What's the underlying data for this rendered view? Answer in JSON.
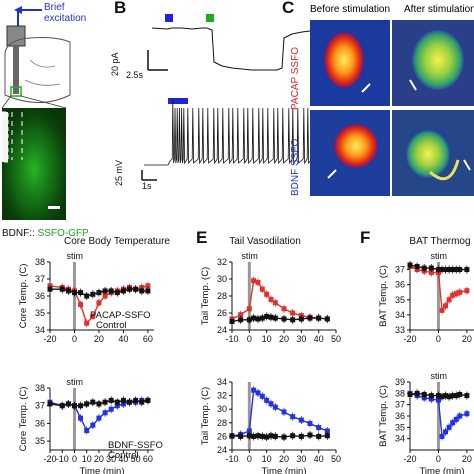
{
  "panel_a": {
    "excitation_label": "Brief\nexcitation",
    "bottom_label_prefix": "BDNF::",
    "bottom_label_suffix": "SSFO-GFP",
    "colors": {
      "blue": "#2233cc",
      "green": "#1fa31f"
    }
  },
  "panel_b": {
    "letter": "B",
    "scale_top_y": "20 pA",
    "scale_top_x": "2.5s",
    "scale_bot_y": "25 mV",
    "scale_bot_x": "1s",
    "colors": {
      "marker_blue": "#2222dd",
      "marker_green": "#22aa22"
    }
  },
  "panel_c": {
    "letter": "C",
    "col1": "Before stimulation",
    "col2": "After stimulation",
    "row1": "PACAP SSFO",
    "row2": "BDNF SSFO",
    "colors": {
      "row1": "#e02020",
      "row2": "#2233cc"
    }
  },
  "panel_e": {
    "letter": "E"
  },
  "panel_f": {
    "letter": "F"
  },
  "chart_data": [
    {
      "id": "core-top",
      "type": "line",
      "title": "Core Body Temperature",
      "ylabel": "Core Temp. (C)",
      "xlabel": "",
      "ylim": [
        34,
        38
      ],
      "yticks": [
        34,
        35,
        36,
        37,
        38
      ],
      "xlim": [
        -20,
        65
      ],
      "xticks": [
        -20,
        0,
        20,
        40,
        60
      ],
      "stim": "stim",
      "stim_x": 0,
      "series": [
        {
          "name": "PACAP-SSFO",
          "color": "#e03030",
          "x": [
            -20,
            -10,
            -5,
            0,
            5,
            10,
            15,
            20,
            25,
            30,
            35,
            40,
            45,
            50,
            55,
            60
          ],
          "y": [
            36.6,
            36.5,
            36.4,
            36.3,
            35.5,
            34.4,
            34.8,
            35.6,
            36.0,
            36.2,
            36.3,
            36.4,
            36.5,
            36.4,
            36.5,
            36.6
          ]
        },
        {
          "name": "Control",
          "color": "#111111",
          "x": [
            -20,
            -10,
            -5,
            0,
            5,
            10,
            15,
            20,
            25,
            30,
            35,
            40,
            45,
            50,
            55,
            60
          ],
          "y": [
            36.4,
            36.4,
            36.3,
            36.2,
            36.2,
            36.0,
            36.1,
            36.2,
            36.3,
            36.3,
            36.2,
            36.3,
            36.4,
            36.4,
            36.3,
            36.3
          ]
        }
      ],
      "xticklabels": [
        "-20",
        "0",
        "20",
        "40",
        "60"
      ]
    },
    {
      "id": "core-bot",
      "type": "line",
      "title": "",
      "ylabel": "Core Temp. (C)",
      "xlabel": "Time (min)",
      "ylim": [
        34.5,
        38
      ],
      "yticks": [
        35,
        36,
        37,
        38
      ],
      "xlim": [
        -20,
        65
      ],
      "xticks": [
        -20,
        -10,
        0,
        10,
        20,
        30,
        40,
        50,
        60
      ],
      "stim": "stim",
      "stim_x": 0,
      "series": [
        {
          "name": "BDNF-SSFO",
          "color": "#2233dd",
          "x": [
            -20,
            -10,
            -5,
            0,
            5,
            10,
            15,
            20,
            25,
            30,
            35,
            40,
            45,
            50,
            55,
            60
          ],
          "y": [
            37.2,
            37.0,
            37.1,
            37.0,
            36.3,
            35.6,
            35.9,
            36.3,
            36.6,
            36.8,
            37.0,
            37.1,
            37.2,
            37.2,
            37.3,
            37.3
          ]
        },
        {
          "name": "Control",
          "color": "#111111",
          "x": [
            -20,
            -10,
            -5,
            0,
            5,
            10,
            15,
            20,
            25,
            30,
            35,
            40,
            45,
            50,
            55,
            60
          ],
          "y": [
            37.1,
            37.0,
            37.1,
            37.0,
            37.0,
            37.1,
            37.2,
            37.1,
            37.2,
            37.3,
            37.2,
            37.3,
            37.2,
            37.3,
            37.2,
            37.3
          ]
        }
      ],
      "xticklabels": [
        "-20",
        "-10",
        "0",
        "10",
        "20",
        "30",
        "40",
        "50",
        "60"
      ]
    },
    {
      "id": "tail-top",
      "type": "line",
      "title": "Tail Vasodilation",
      "ylabel": "Tail Temp. (C)",
      "xlabel": "",
      "ylim": [
        24,
        32
      ],
      "yticks": [
        24,
        26,
        28,
        30,
        32
      ],
      "xlim": [
        -10,
        50
      ],
      "xticks": [
        -10,
        0,
        10,
        20,
        30,
        40,
        50
      ],
      "stim": "stim",
      "stim_x": 0,
      "series": [
        {
          "name": "PACAP",
          "color": "#e03030",
          "x": [
            -10,
            -5,
            0,
            2.5,
            5,
            7.5,
            10,
            12.5,
            15,
            20,
            25,
            30,
            35,
            40,
            45
          ],
          "y": [
            25.3,
            25.8,
            26.5,
            29.8,
            29.6,
            28.8,
            28.2,
            27.6,
            27.2,
            26.5,
            26.0,
            25.7,
            25.5,
            25.4,
            25.3
          ]
        },
        {
          "name": "Control",
          "color": "#111111",
          "x": [
            -10,
            -5,
            0,
            2.5,
            5,
            7.5,
            10,
            12.5,
            15,
            20,
            25,
            30,
            35,
            40,
            45
          ],
          "y": [
            25.0,
            25.2,
            25.2,
            25.4,
            25.3,
            25.4,
            25.6,
            25.5,
            25.4,
            25.3,
            25.2,
            25.3,
            25.4,
            25.4,
            25.3
          ]
        }
      ],
      "xticklabels": [
        "-10",
        "0",
        "10",
        "20",
        "30",
        "40",
        "50"
      ]
    },
    {
      "id": "tail-bot",
      "type": "line",
      "title": "",
      "ylabel": "Tail Temp. (C)",
      "xlabel": "Time (min)",
      "ylim": [
        24,
        34
      ],
      "yticks": [
        24,
        26,
        28,
        30,
        32,
        34
      ],
      "xlim": [
        -10,
        50
      ],
      "xticks": [
        -10,
        0,
        10,
        20,
        30,
        40,
        50
      ],
      "stim": "",
      "stim_x": 0,
      "series": [
        {
          "name": "BDNF",
          "color": "#2233dd",
          "x": [
            -10,
            -5,
            0,
            2.5,
            5,
            7.5,
            10,
            12.5,
            15,
            20,
            25,
            30,
            35,
            40,
            45
          ],
          "y": [
            26.0,
            26.3,
            26.8,
            32.8,
            32.4,
            31.9,
            31.3,
            30.8,
            30.3,
            29.6,
            28.9,
            28.4,
            27.9,
            27.3,
            26.8
          ]
        },
        {
          "name": "Control",
          "color": "#111111",
          "x": [
            -10,
            -5,
            0,
            2.5,
            5,
            7.5,
            10,
            12.5,
            15,
            20,
            25,
            30,
            35,
            40,
            45
          ],
          "y": [
            26.1,
            26.0,
            26.1,
            26.0,
            26.1,
            26.0,
            25.9,
            26.1,
            26.0,
            25.9,
            26.1,
            26.0,
            26.2,
            26.0,
            26.1
          ]
        }
      ],
      "xticklabels": [
        "-10",
        "0",
        "10",
        "20",
        "30",
        "40",
        "50"
      ]
    },
    {
      "id": "bat-top",
      "type": "line",
      "title": "BAT Thermog",
      "ylabel": "BAT Temp. (C)",
      "xlabel": "",
      "ylim": [
        33,
        37.5
      ],
      "yticks": [
        33,
        34,
        35,
        36,
        37
      ],
      "xlim": [
        -20,
        25
      ],
      "xticks": [
        -20,
        0,
        20
      ],
      "stim": "stim",
      "stim_x": 0,
      "series": [
        {
          "name": "PACAP",
          "color": "#e03030",
          "x": [
            -20,
            -15,
            -10,
            -5,
            0,
            2.5,
            5,
            7.5,
            10,
            12.5,
            15,
            20
          ],
          "y": [
            37.2,
            37.0,
            36.9,
            36.8,
            36.8,
            34.3,
            34.6,
            35.0,
            35.3,
            35.4,
            35.5,
            35.6
          ]
        },
        {
          "name": "Control",
          "color": "#111111",
          "x": [
            -20,
            -15,
            -10,
            -5,
            0,
            2.5,
            5,
            7.5,
            10,
            12.5,
            15,
            20
          ],
          "y": [
            37.3,
            37.2,
            37.1,
            37.1,
            37.0,
            37.0,
            37.0,
            37.0,
            37.0,
            37.0,
            37.0,
            37.0
          ]
        }
      ],
      "xticklabels": [
        "-20",
        "0",
        "20"
      ]
    },
    {
      "id": "bat-bot",
      "type": "line",
      "title": "",
      "ylabel": "BAT Temp. (C)",
      "xlabel": "Time (min)",
      "ylim": [
        33,
        39
      ],
      "yticks": [
        34,
        35,
        36,
        37,
        38,
        39
      ],
      "xlim": [
        -20,
        25
      ],
      "xticks": [
        -20,
        0,
        20
      ],
      "stim": "stim",
      "stim_x": 0,
      "series": [
        {
          "name": "BDNF",
          "color": "#2233dd",
          "x": [
            -20,
            -15,
            -10,
            -5,
            0,
            2.5,
            5,
            7.5,
            10,
            12.5,
            15,
            20
          ],
          "y": [
            38.0,
            37.8,
            37.6,
            37.5,
            37.4,
            34.2,
            34.6,
            35.0,
            35.4,
            35.7,
            36.0,
            36.2
          ]
        },
        {
          "name": "Control",
          "color": "#111111",
          "x": [
            -20,
            -15,
            -10,
            -5,
            0,
            2.5,
            5,
            7.5,
            10,
            12.5,
            15,
            20
          ],
          "y": [
            37.9,
            38.0,
            37.9,
            37.8,
            37.8,
            37.7,
            37.8,
            37.7,
            37.8,
            37.8,
            37.9,
            37.8
          ]
        }
      ],
      "xticklabels": [
        "-20",
        "0",
        "20"
      ]
    }
  ],
  "legends": {
    "core_top": [
      "PACAP-SSFO",
      "Control"
    ],
    "core_bot": [
      "BDNF-SSFO",
      "Control"
    ]
  }
}
